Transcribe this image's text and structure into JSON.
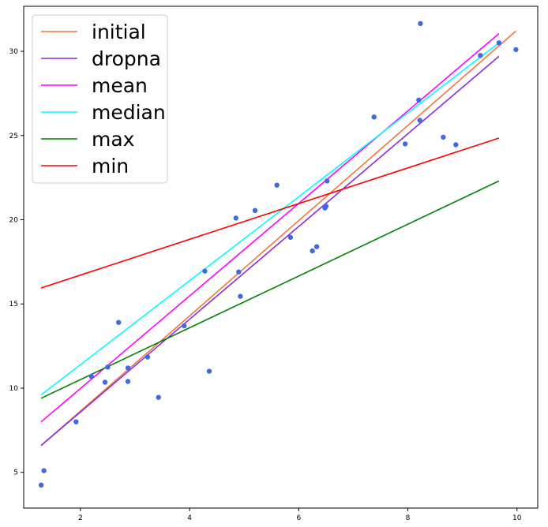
{
  "chart_data": {
    "type": "scatter",
    "xlim": [
      0.96,
      10.38
    ],
    "ylim": [
      2.88,
      32.67
    ],
    "xticks": [
      2,
      4,
      6,
      8,
      10
    ],
    "yticks": [
      5,
      10,
      15,
      20,
      25,
      30
    ],
    "grid": false,
    "legend_position": "top-left",
    "points": {
      "color": "#4169e1",
      "x": [
        1.28,
        1.33,
        1.92,
        2.2,
        2.45,
        2.5,
        2.7,
        2.87,
        2.87,
        3.23,
        3.43,
        3.9,
        4.28,
        4.36,
        4.85,
        4.9,
        4.93,
        5.2,
        5.6,
        5.85,
        6.25,
        6.33,
        6.48,
        6.5,
        6.52,
        7.38,
        7.95,
        8.2,
        8.22,
        8.23,
        8.65,
        8.88,
        9.33,
        9.67,
        9.98
      ],
      "y": [
        4.25,
        5.1,
        8.0,
        10.7,
        10.35,
        11.25,
        13.9,
        11.2,
        10.4,
        11.85,
        9.45,
        13.7,
        16.95,
        11.0,
        20.1,
        16.9,
        15.45,
        20.55,
        22.05,
        18.95,
        18.15,
        18.4,
        20.7,
        20.8,
        22.3,
        26.1,
        24.5,
        27.1,
        25.9,
        31.65,
        24.9,
        24.45,
        29.75,
        30.5,
        30.1
      ]
    },
    "series": [
      {
        "name": "initial",
        "color": "#f4743b",
        "x": [
          1.28,
          9.98
        ],
        "y": [
          6.6,
          31.2
        ]
      },
      {
        "name": "dropna",
        "color": "#8a2be2",
        "x": [
          1.28,
          9.67
        ],
        "y": [
          6.6,
          29.7
        ]
      },
      {
        "name": "mean",
        "color": "#ff00ff",
        "x": [
          1.28,
          9.67
        ],
        "y": [
          8.0,
          31.05
        ]
      },
      {
        "name": "median",
        "color": "#00ffff",
        "x": [
          1.28,
          9.67
        ],
        "y": [
          9.6,
          30.5
        ]
      },
      {
        "name": "max",
        "color": "#008000",
        "x": [
          1.28,
          9.67
        ],
        "y": [
          9.4,
          22.3
        ]
      },
      {
        "name": "min",
        "color": "#ff0000",
        "x": [
          1.28,
          9.67
        ],
        "y": [
          15.95,
          24.85
        ]
      }
    ]
  }
}
